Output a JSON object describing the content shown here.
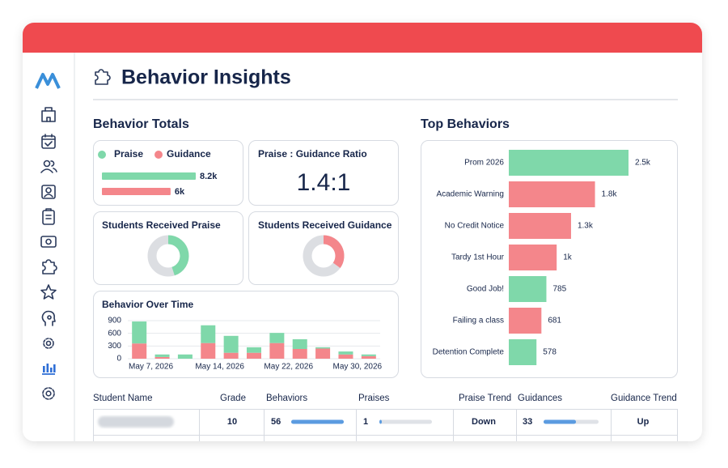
{
  "header": {
    "title": "Behavior Insights"
  },
  "totals": {
    "title": "Behavior Totals",
    "items": [
      {
        "name": "Praise",
        "color": "#7fd8aa",
        "value": 8200,
        "value_label": "8.2k"
      },
      {
        "name": "Guidance",
        "color": "#f4868b",
        "value": 6000,
        "value_label": "6k"
      }
    ]
  },
  "ratio": {
    "title": "Praise : Guidance Ratio",
    "value": "1.4:1"
  },
  "praise_students": {
    "title": "Students Received Praise",
    "percent": 45,
    "color": "#7fd8aa"
  },
  "guidance_students": {
    "title": "Students Received Guidance",
    "percent": 35,
    "color": "#f4868b"
  },
  "chart_data": [
    {
      "type": "stacked_bar",
      "title": "Behavior Over Time",
      "categories": [
        null,
        "May 7, 2026",
        null,
        null,
        "May 14, 2026",
        null,
        null,
        "May 22, 2026",
        null,
        null,
        "May 30, 2026"
      ],
      "series": [
        {
          "color": "#f4868b",
          "values": [
            360,
            40,
            0,
            370,
            140,
            140,
            370,
            230,
            240,
            100,
            60
          ]
        },
        {
          "color": "#7fd8aa",
          "values": [
            520,
            60,
            100,
            420,
            400,
            130,
            240,
            230,
            30,
            70,
            40
          ]
        }
      ],
      "ylim": [
        0,
        900
      ],
      "yticks": [
        0,
        300,
        600,
        900
      ],
      "grid": true
    },
    {
      "type": "barh",
      "title": "Top Behaviors",
      "categories": [
        "Prom 2026",
        "Academic Warning",
        "No Credit Notice",
        "Tardy 1st Hour",
        "Good Job!",
        "Failing a class",
        "Detention Complete"
      ],
      "values": [
        2500,
        1800,
        1300,
        1000,
        785,
        681,
        578
      ],
      "value_labels": [
        "2.5k",
        "1.8k",
        "1.3k",
        "1k",
        "785",
        "681",
        "578"
      ],
      "colors": [
        "#7fd8aa",
        "#f4868b",
        "#f4868b",
        "#f4868b",
        "#7fd8aa",
        "#f4868b",
        "#7fd8aa"
      ]
    }
  ],
  "table": {
    "columns": [
      "Student Name",
      "Grade",
      "Behaviors",
      "Praises",
      "Praise Trend",
      "Guidances",
      "Guidance Trend"
    ],
    "rows": [
      {
        "grade": 10,
        "behaviors": 56,
        "praises": 1,
        "praise_trend": "Down",
        "guidances": 33,
        "guidance_trend": "Up"
      }
    ]
  }
}
